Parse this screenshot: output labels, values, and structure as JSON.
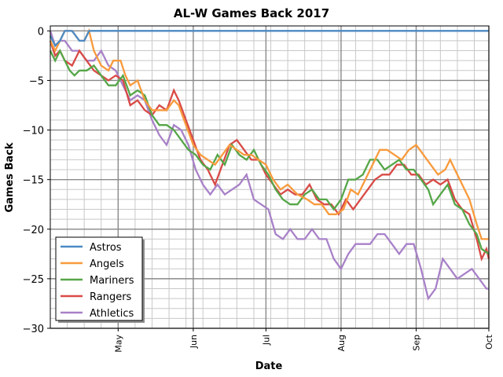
{
  "chart_data": {
    "type": "line",
    "title": "AL-W Games Back 2017",
    "xlabel": "Date",
    "ylabel": "Games Back",
    "ylim": [
      -30,
      0.5
    ],
    "xlim": [
      "2017-04-03",
      "2017-10-01"
    ],
    "x_ticks": [
      "May",
      "Jun",
      "Jul",
      "Aug",
      "Sep",
      "Oct"
    ],
    "y_ticks": [
      0,
      -5,
      -10,
      -15,
      -20,
      -25,
      -30
    ],
    "grid": true,
    "legend_position": "lower-left",
    "series": [
      {
        "name": "Astros",
        "color": "#4c8ac4",
        "points": [
          [
            "2017-04-03",
            -0.5
          ],
          [
            "2017-04-05",
            -1.5
          ],
          [
            "2017-04-07",
            -1
          ],
          [
            "2017-04-09",
            0
          ],
          [
            "2017-04-12",
            0
          ],
          [
            "2017-04-15",
            -1
          ],
          [
            "2017-04-17",
            -1
          ],
          [
            "2017-04-19",
            0
          ],
          [
            "2017-10-01",
            0
          ]
        ]
      },
      {
        "name": "Angels",
        "color": "#f89a3c",
        "points": [
          [
            "2017-04-03",
            -1
          ],
          [
            "2017-04-05",
            -2
          ],
          [
            "2017-04-07",
            -1
          ],
          [
            "2017-04-09",
            0
          ],
          [
            "2017-04-12",
            0
          ],
          [
            "2017-04-15",
            -1
          ],
          [
            "2017-04-17",
            -1
          ],
          [
            "2017-04-19",
            0
          ],
          [
            "2017-04-21",
            -2
          ],
          [
            "2017-04-24",
            -3.5
          ],
          [
            "2017-04-27",
            -4
          ],
          [
            "2017-04-29",
            -3
          ],
          [
            "2017-05-02",
            -3
          ],
          [
            "2017-05-04",
            -4.5
          ],
          [
            "2017-05-06",
            -5.5
          ],
          [
            "2017-05-09",
            -5
          ],
          [
            "2017-05-12",
            -7
          ],
          [
            "2017-05-15",
            -8
          ],
          [
            "2017-05-18",
            -8
          ],
          [
            "2017-05-21",
            -8
          ],
          [
            "2017-05-24",
            -7
          ],
          [
            "2017-05-26",
            -7.5
          ],
          [
            "2017-05-29",
            -9.5
          ],
          [
            "2017-06-01",
            -11.5
          ],
          [
            "2017-06-04",
            -12.5
          ],
          [
            "2017-06-07",
            -13
          ],
          [
            "2017-06-10",
            -13.5
          ],
          [
            "2017-06-13",
            -12.5
          ],
          [
            "2017-06-16",
            -11.5
          ],
          [
            "2017-06-19",
            -12
          ],
          [
            "2017-06-22",
            -12.5
          ],
          [
            "2017-06-25",
            -12.5
          ],
          [
            "2017-06-28",
            -13
          ],
          [
            "2017-07-01",
            -13.5
          ],
          [
            "2017-07-04",
            -15
          ],
          [
            "2017-07-07",
            -16
          ],
          [
            "2017-07-10",
            -15.5
          ],
          [
            "2017-07-14",
            -16.5
          ],
          [
            "2017-07-18",
            -17
          ],
          [
            "2017-07-21",
            -17.5
          ],
          [
            "2017-07-24",
            -17.5
          ],
          [
            "2017-07-27",
            -18.5
          ],
          [
            "2017-07-30",
            -18.5
          ],
          [
            "2017-08-02",
            -18
          ],
          [
            "2017-08-05",
            -16
          ],
          [
            "2017-08-08",
            -16.5
          ],
          [
            "2017-08-11",
            -15
          ],
          [
            "2017-08-14",
            -13.5
          ],
          [
            "2017-08-17",
            -12
          ],
          [
            "2017-08-20",
            -12
          ],
          [
            "2017-08-23",
            -12.5
          ],
          [
            "2017-08-26",
            -13
          ],
          [
            "2017-08-29",
            -12
          ],
          [
            "2017-09-01",
            -11.5
          ],
          [
            "2017-09-04",
            -12.5
          ],
          [
            "2017-09-07",
            -13.5
          ],
          [
            "2017-09-10",
            -14.5
          ],
          [
            "2017-09-13",
            -14
          ],
          [
            "2017-09-15",
            -13
          ],
          [
            "2017-09-17",
            -14
          ],
          [
            "2017-09-20",
            -15.5
          ],
          [
            "2017-09-23",
            -17
          ],
          [
            "2017-09-26",
            -19.5
          ],
          [
            "2017-09-28",
            -21
          ],
          [
            "2017-10-01",
            -21
          ]
        ]
      },
      {
        "name": "Mariners",
        "color": "#55a648",
        "points": [
          [
            "2017-04-03",
            -2
          ],
          [
            "2017-04-05",
            -3
          ],
          [
            "2017-04-07",
            -2
          ],
          [
            "2017-04-09",
            -3
          ],
          [
            "2017-04-11",
            -4
          ],
          [
            "2017-04-13",
            -4.5
          ],
          [
            "2017-04-15",
            -4
          ],
          [
            "2017-04-18",
            -4
          ],
          [
            "2017-04-21",
            -3.5
          ],
          [
            "2017-04-24",
            -4.5
          ],
          [
            "2017-04-27",
            -5.5
          ],
          [
            "2017-04-30",
            -5.5
          ],
          [
            "2017-05-03",
            -4.5
          ],
          [
            "2017-05-06",
            -6.5
          ],
          [
            "2017-05-09",
            -6
          ],
          [
            "2017-05-12",
            -6.5
          ],
          [
            "2017-05-15",
            -8.5
          ],
          [
            "2017-05-18",
            -9.5
          ],
          [
            "2017-05-21",
            -9.5
          ],
          [
            "2017-05-24",
            -10
          ],
          [
            "2017-05-27",
            -11
          ],
          [
            "2017-05-30",
            -12
          ],
          [
            "2017-06-02",
            -12.5
          ],
          [
            "2017-06-05",
            -13.5
          ],
          [
            "2017-06-08",
            -14
          ],
          [
            "2017-06-11",
            -12.5
          ],
          [
            "2017-06-14",
            -13.5
          ],
          [
            "2017-06-17",
            -11.5
          ],
          [
            "2017-06-20",
            -12.5
          ],
          [
            "2017-06-23",
            -13
          ],
          [
            "2017-06-26",
            -12
          ],
          [
            "2017-06-29",
            -13.5
          ],
          [
            "2017-07-02",
            -14.5
          ],
          [
            "2017-07-05",
            -16
          ],
          [
            "2017-07-08",
            -17
          ],
          [
            "2017-07-11",
            -17.5
          ],
          [
            "2017-07-14",
            -17.5
          ],
          [
            "2017-07-17",
            -16.5
          ],
          [
            "2017-07-20",
            -16
          ],
          [
            "2017-07-23",
            -17
          ],
          [
            "2017-07-26",
            -17
          ],
          [
            "2017-07-29",
            -18
          ],
          [
            "2017-08-01",
            -17
          ],
          [
            "2017-08-04",
            -15
          ],
          [
            "2017-08-07",
            -15
          ],
          [
            "2017-08-10",
            -14.5
          ],
          [
            "2017-08-13",
            -13
          ],
          [
            "2017-08-16",
            -13
          ],
          [
            "2017-08-19",
            -14
          ],
          [
            "2017-08-22",
            -13.5
          ],
          [
            "2017-08-25",
            -13
          ],
          [
            "2017-08-28",
            -14
          ],
          [
            "2017-08-31",
            -14
          ],
          [
            "2017-09-03",
            -15
          ],
          [
            "2017-09-06",
            -16
          ],
          [
            "2017-09-08",
            -17.5
          ],
          [
            "2017-09-11",
            -16.5
          ],
          [
            "2017-09-14",
            -15.5
          ],
          [
            "2017-09-17",
            -17.5
          ],
          [
            "2017-09-20",
            -18
          ],
          [
            "2017-09-23",
            -19.5
          ],
          [
            "2017-09-26",
            -20.5
          ],
          [
            "2017-09-28",
            -22
          ],
          [
            "2017-10-01",
            -22.5
          ]
        ]
      },
      {
        "name": "Rangers",
        "color": "#d84a46",
        "points": [
          [
            "2017-04-03",
            -1
          ],
          [
            "2017-04-05",
            -2.5
          ],
          [
            "2017-04-07",
            -2
          ],
          [
            "2017-04-09",
            -3
          ],
          [
            "2017-04-12",
            -3.5
          ],
          [
            "2017-04-15",
            -2
          ],
          [
            "2017-04-18",
            -3
          ],
          [
            "2017-04-21",
            -4
          ],
          [
            "2017-04-24",
            -4.5
          ],
          [
            "2017-04-27",
            -5
          ],
          [
            "2017-04-30",
            -4.5
          ],
          [
            "2017-05-03",
            -5
          ],
          [
            "2017-05-06",
            -7.5
          ],
          [
            "2017-05-09",
            -7
          ],
          [
            "2017-05-12",
            -8
          ],
          [
            "2017-05-15",
            -8.5
          ],
          [
            "2017-05-18",
            -7.5
          ],
          [
            "2017-05-21",
            -8
          ],
          [
            "2017-05-24",
            -6
          ],
          [
            "2017-05-26",
            -7
          ],
          [
            "2017-05-29",
            -9
          ],
          [
            "2017-06-01",
            -11
          ],
          [
            "2017-06-04",
            -13
          ],
          [
            "2017-06-07",
            -14
          ],
          [
            "2017-06-10",
            -15.5
          ],
          [
            "2017-06-13",
            -13.5
          ],
          [
            "2017-06-16",
            -11.5
          ],
          [
            "2017-06-19",
            -11
          ],
          [
            "2017-06-22",
            -12
          ],
          [
            "2017-06-25",
            -13
          ],
          [
            "2017-06-28",
            -13
          ],
          [
            "2017-07-01",
            -14.5
          ],
          [
            "2017-07-04",
            -15.5
          ],
          [
            "2017-07-07",
            -16.5
          ],
          [
            "2017-07-10",
            -16
          ],
          [
            "2017-07-13",
            -16.5
          ],
          [
            "2017-07-16",
            -16.5
          ],
          [
            "2017-07-19",
            -15.5
          ],
          [
            "2017-07-22",
            -17
          ],
          [
            "2017-07-25",
            -17.5
          ],
          [
            "2017-07-28",
            -17.5
          ],
          [
            "2017-07-31",
            -18.5
          ],
          [
            "2017-08-03",
            -17
          ],
          [
            "2017-08-06",
            -18
          ],
          [
            "2017-08-09",
            -17
          ],
          [
            "2017-08-12",
            -16
          ],
          [
            "2017-08-15",
            -15
          ],
          [
            "2017-08-18",
            -14.5
          ],
          [
            "2017-08-21",
            -14.5
          ],
          [
            "2017-08-24",
            -13.5
          ],
          [
            "2017-08-27",
            -13.5
          ],
          [
            "2017-08-30",
            -14.5
          ],
          [
            "2017-09-02",
            -14.5
          ],
          [
            "2017-09-05",
            -15.5
          ],
          [
            "2017-09-08",
            -15
          ],
          [
            "2017-09-11",
            -15.5
          ],
          [
            "2017-09-14",
            -15
          ],
          [
            "2017-09-17",
            -17
          ],
          [
            "2017-09-20",
            -18
          ],
          [
            "2017-09-23",
            -18.5
          ],
          [
            "2017-09-26",
            -21
          ],
          [
            "2017-09-28",
            -23
          ],
          [
            "2017-09-30",
            -22
          ],
          [
            "2017-10-01",
            -23
          ]
        ]
      },
      {
        "name": "Athletics",
        "color": "#a881c8",
        "points": [
          [
            "2017-04-03",
            0
          ],
          [
            "2017-04-05",
            -1.5
          ],
          [
            "2017-04-07",
            -1
          ],
          [
            "2017-04-09",
            -1
          ],
          [
            "2017-04-12",
            -2
          ],
          [
            "2017-04-15",
            -2
          ],
          [
            "2017-04-18",
            -3
          ],
          [
            "2017-04-21",
            -3
          ],
          [
            "2017-04-24",
            -2
          ],
          [
            "2017-04-27",
            -3.5
          ],
          [
            "2017-04-30",
            -4
          ],
          [
            "2017-05-03",
            -5.5
          ],
          [
            "2017-05-06",
            -7
          ],
          [
            "2017-05-09",
            -6.5
          ],
          [
            "2017-05-12",
            -7
          ],
          [
            "2017-05-15",
            -9
          ],
          [
            "2017-05-18",
            -10.5
          ],
          [
            "2017-05-21",
            -11.5
          ],
          [
            "2017-05-24",
            -9.5
          ],
          [
            "2017-05-27",
            -10
          ],
          [
            "2017-05-30",
            -11.5
          ],
          [
            "2017-06-02",
            -14
          ],
          [
            "2017-06-05",
            -15.5
          ],
          [
            "2017-06-08",
            -16.5
          ],
          [
            "2017-06-11",
            -15.5
          ],
          [
            "2017-06-14",
            -16.5
          ],
          [
            "2017-06-17",
            -16
          ],
          [
            "2017-06-20",
            -15.5
          ],
          [
            "2017-06-23",
            -14.5
          ],
          [
            "2017-06-26",
            -17
          ],
          [
            "2017-06-29",
            -17.5
          ],
          [
            "2017-07-02",
            -18
          ],
          [
            "2017-07-05",
            -20.5
          ],
          [
            "2017-07-08",
            -21
          ],
          [
            "2017-07-11",
            -20
          ],
          [
            "2017-07-14",
            -21
          ],
          [
            "2017-07-17",
            -21
          ],
          [
            "2017-07-20",
            -20
          ],
          [
            "2017-07-23",
            -21
          ],
          [
            "2017-07-26",
            -21
          ],
          [
            "2017-07-29",
            -23
          ],
          [
            "2017-08-01",
            -24
          ],
          [
            "2017-08-04",
            -22.5
          ],
          [
            "2017-08-07",
            -21.5
          ],
          [
            "2017-08-10",
            -21.5
          ],
          [
            "2017-08-13",
            -21.5
          ],
          [
            "2017-08-16",
            -20.5
          ],
          [
            "2017-08-19",
            -20.5
          ],
          [
            "2017-08-22",
            -21.5
          ],
          [
            "2017-08-25",
            -22.5
          ],
          [
            "2017-08-28",
            -21.5
          ],
          [
            "2017-08-31",
            -21.5
          ],
          [
            "2017-09-03",
            -24
          ],
          [
            "2017-09-06",
            -27
          ],
          [
            "2017-09-09",
            -26
          ],
          [
            "2017-09-12",
            -23
          ],
          [
            "2017-09-15",
            -24
          ],
          [
            "2017-09-18",
            -25
          ],
          [
            "2017-09-21",
            -24.5
          ],
          [
            "2017-09-24",
            -24
          ],
          [
            "2017-09-27",
            -25
          ],
          [
            "2017-09-30",
            -26
          ],
          [
            "2017-10-01",
            -26
          ]
        ]
      }
    ]
  }
}
